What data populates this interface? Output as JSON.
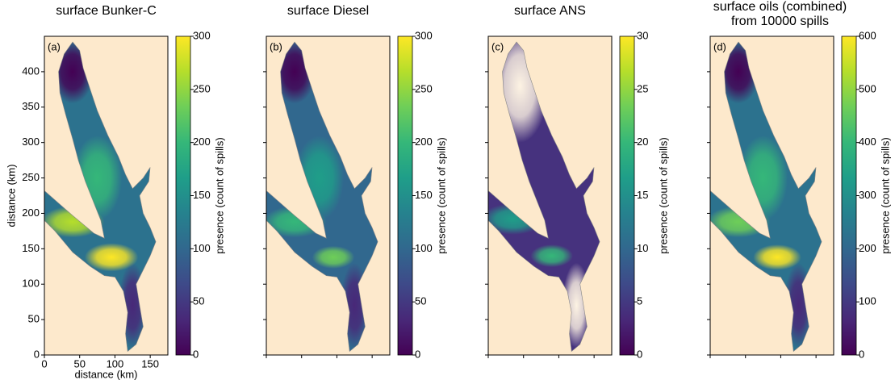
{
  "chart_data": [
    {
      "type": "map",
      "title": "surface Bunker-C",
      "panel_label": "(a)",
      "xlabel": "distance (km)",
      "ylabel": "distance (km)",
      "xlim": [
        0,
        175
      ],
      "ylim": [
        0,
        450
      ],
      "xticks": [
        0,
        50,
        100,
        150
      ],
      "yticks": [
        0,
        50,
        100,
        150,
        200,
        250,
        300,
        350,
        400
      ],
      "colorbar": {
        "label": "presence (count of spills)",
        "lim": [
          0,
          300
        ],
        "ticks": [
          0,
          50,
          100,
          150,
          200,
          250,
          300
        ],
        "colormap": "viridis"
      }
    },
    {
      "type": "map",
      "title": "surface Diesel",
      "panel_label": "(b)",
      "xlim": [
        0,
        175
      ],
      "ylim": [
        0,
        450
      ],
      "colorbar": {
        "label": "presence (count of spills)",
        "lim": [
          0,
          300
        ],
        "ticks": [
          0,
          50,
          100,
          150,
          200,
          250,
          300
        ],
        "colormap": "viridis"
      }
    },
    {
      "type": "map",
      "title": "surface ANS",
      "panel_label": "(c)",
      "xlim": [
        0,
        175
      ],
      "ylim": [
        0,
        450
      ],
      "colorbar": {
        "label": "presence (count of spills)",
        "lim": [
          0,
          30
        ],
        "ticks": [
          0,
          5,
          10,
          15,
          20,
          25,
          30
        ],
        "colormap": "viridis"
      }
    },
    {
      "type": "map",
      "title": "surface oils (combined)",
      "subtitle": "from 10000 spills",
      "panel_label": "(d)",
      "xlim": [
        0,
        175
      ],
      "ylim": [
        0,
        450
      ],
      "colorbar": {
        "label": "presence (count of spills)",
        "lim": [
          0,
          600
        ],
        "ticks": [
          0,
          100,
          200,
          300,
          400,
          500,
          600
        ],
        "colormap": "viridis"
      }
    }
  ]
}
